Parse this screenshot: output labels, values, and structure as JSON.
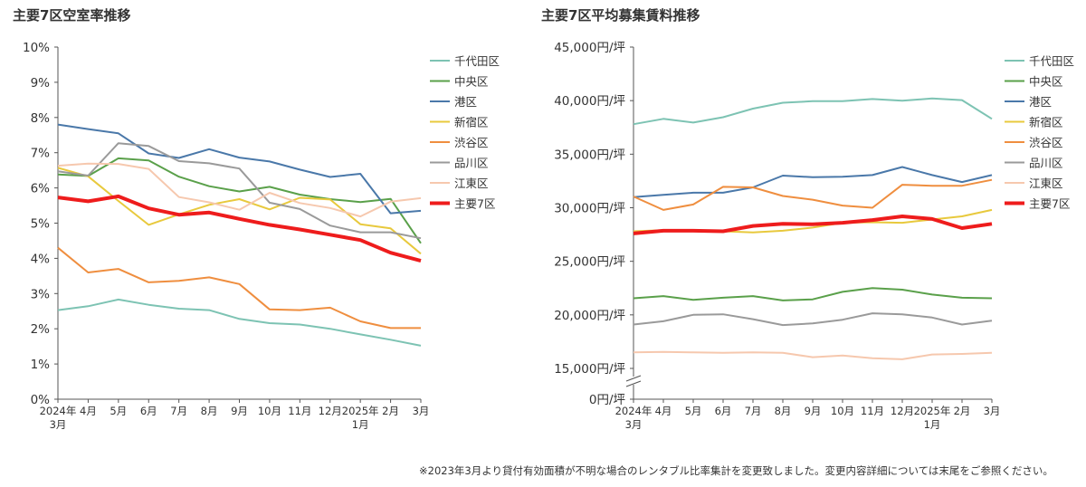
{
  "note": "※2023年3月より貸付有効面積が不明な場合のレンタブル比率集計を変更致しました。変更内容詳細については末尾をご参照ください。",
  "chart_data": [
    {
      "type": "line",
      "title": "主要7区空室率推移",
      "x": [
        "2024年\n3月",
        "4月",
        "5月",
        "6月",
        "7月",
        "8月",
        "9月",
        "10月",
        "11月",
        "12月",
        "2025年\n1月",
        "2月",
        "3月"
      ],
      "ylim": [
        0,
        10
      ],
      "yticks": [
        "0%",
        "1%",
        "2%",
        "3%",
        "4%",
        "5%",
        "6%",
        "7%",
        "8%",
        "9%",
        "10%"
      ],
      "legend_position": "right",
      "series": [
        {
          "name": "千代田区",
          "color": "#7dc3b3",
          "values": [
            2.53,
            2.64,
            2.83,
            2.68,
            2.57,
            2.53,
            2.28,
            2.16,
            2.12,
            2.0,
            1.84,
            1.69,
            1.52
          ]
        },
        {
          "name": "中央区",
          "color": "#5aa04a",
          "values": [
            6.38,
            6.34,
            6.84,
            6.78,
            6.32,
            6.05,
            5.9,
            6.03,
            5.81,
            5.68,
            5.6,
            5.69,
            4.43
          ]
        },
        {
          "name": "港区",
          "color": "#4a78a9",
          "values": [
            7.8,
            7.67,
            7.55,
            6.98,
            6.85,
            7.1,
            6.86,
            6.75,
            6.52,
            6.31,
            6.4,
            5.28,
            5.35
          ]
        },
        {
          "name": "新宿区",
          "color": "#e8c93d",
          "values": [
            6.57,
            6.33,
            5.63,
            4.95,
            5.25,
            5.52,
            5.68,
            5.39,
            5.72,
            5.67,
            4.97,
            4.85,
            4.13
          ]
        },
        {
          "name": "渋谷区",
          "color": "#ef8e3f",
          "values": [
            4.3,
            3.6,
            3.7,
            3.32,
            3.36,
            3.46,
            3.27,
            2.55,
            2.53,
            2.6,
            2.21,
            2.02,
            2.02
          ]
        },
        {
          "name": "品川区",
          "color": "#9a9a9a",
          "values": [
            6.47,
            6.35,
            7.27,
            7.19,
            6.76,
            6.7,
            6.55,
            5.58,
            5.4,
            4.93,
            4.74,
            4.74,
            4.57
          ]
        },
        {
          "name": "江東区",
          "color": "#f6c8ae",
          "values": [
            6.63,
            6.69,
            6.68,
            6.54,
            5.74,
            5.59,
            5.38,
            5.86,
            5.57,
            5.43,
            5.19,
            5.61,
            5.71
          ]
        },
        {
          "name": "主要7区",
          "color": "#ee1c1c",
          "bold": true,
          "values": [
            5.73,
            5.62,
            5.76,
            5.42,
            5.24,
            5.3,
            5.12,
            4.95,
            4.82,
            4.67,
            4.52,
            4.16,
            3.93
          ]
        }
      ]
    },
    {
      "type": "line",
      "title": "主要7区平均募集賃料推移",
      "x": [
        "2024年\n3月",
        "4月",
        "5月",
        "6月",
        "7月",
        "8月",
        "9月",
        "10月",
        "11月",
        "12月",
        "2025年\n1月",
        "2月",
        "3月"
      ],
      "ylim": [
        15000,
        45000
      ],
      "axis_break": true,
      "yticks": [
        "0円/坪",
        "15,000円/坪",
        "20,000円/坪",
        "25,000円/坪",
        "30,000円/坪",
        "35,000円/坪",
        "40,000円/坪",
        "45,000円/坪"
      ],
      "legend_position": "right",
      "series": [
        {
          "name": "千代田区",
          "color": "#7dc3b3",
          "values": [
            37800,
            38300,
            37950,
            38450,
            39250,
            39800,
            39950,
            39950,
            40150,
            40000,
            40200,
            40050,
            38300
          ]
        },
        {
          "name": "中央区",
          "color": "#5aa04a",
          "values": [
            21550,
            21750,
            21400,
            21600,
            21750,
            21350,
            21450,
            22150,
            22500,
            22350,
            21900,
            21600,
            21550
          ]
        },
        {
          "name": "港区",
          "color": "#4a78a9",
          "values": [
            31000,
            31200,
            31400,
            31400,
            31900,
            33000,
            32850,
            32900,
            33050,
            33800,
            33050,
            32400,
            33050
          ]
        },
        {
          "name": "新宿区",
          "color": "#e8c93d",
          "values": [
            27800,
            27900,
            27900,
            27800,
            27700,
            27850,
            28150,
            28600,
            28650,
            28600,
            28900,
            29200,
            29800
          ]
        },
        {
          "name": "渋谷区",
          "color": "#ef8e3f",
          "values": [
            31050,
            29800,
            30300,
            31950,
            31900,
            31100,
            30750,
            30200,
            30000,
            32150,
            32050,
            32050,
            32600
          ]
        },
        {
          "name": "品川区",
          "color": "#9a9a9a",
          "values": [
            19100,
            19400,
            20000,
            20050,
            19600,
            19050,
            19200,
            19550,
            20150,
            20050,
            19750,
            19100,
            19450
          ]
        },
        {
          "name": "江東区",
          "color": "#f6c8ae",
          "values": [
            16500,
            16550,
            16500,
            16450,
            16500,
            16450,
            16050,
            16200,
            15950,
            15850,
            16300,
            16350,
            16450
          ]
        },
        {
          "name": "主要7区",
          "color": "#ee1c1c",
          "bold": true,
          "values": [
            27600,
            27850,
            27850,
            27800,
            28300,
            28500,
            28450,
            28600,
            28850,
            29200,
            28950,
            28100,
            28500
          ]
        }
      ]
    }
  ]
}
